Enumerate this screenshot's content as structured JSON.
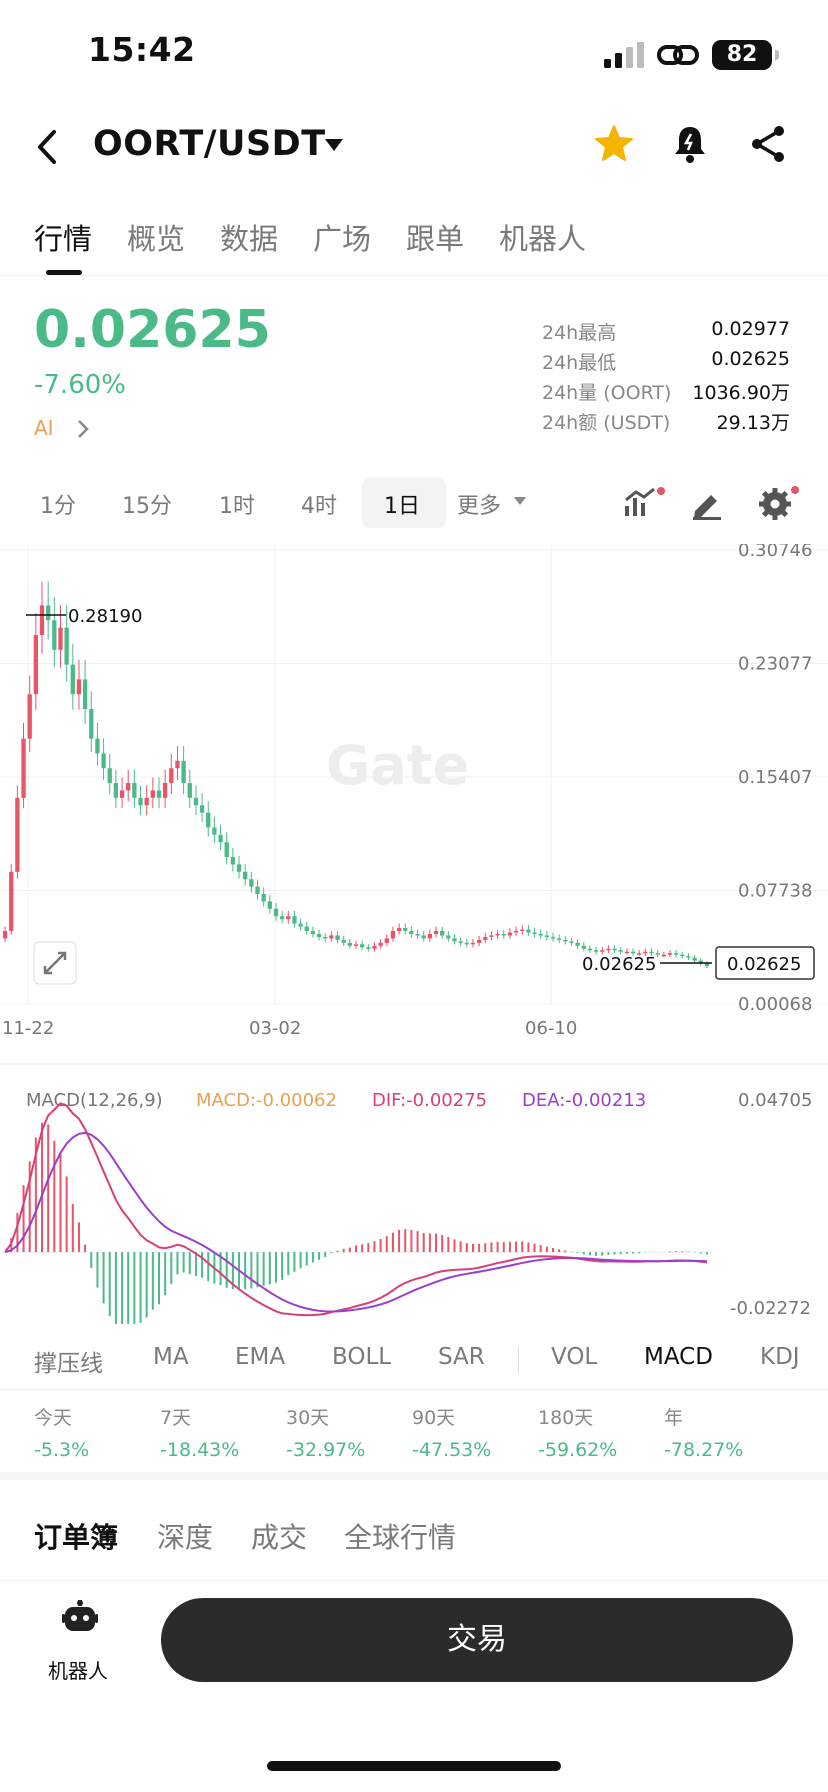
{
  "status_bar": {
    "time": "15:42",
    "battery": "82"
  },
  "header": {
    "pair": "OORT/USDT"
  },
  "tabs": [
    {
      "label": "行情",
      "active": true
    },
    {
      "label": "概览"
    },
    {
      "label": "数据"
    },
    {
      "label": "广场"
    },
    {
      "label": "跟单"
    },
    {
      "label": "机器人"
    }
  ],
  "ticker": {
    "price": "0.02625",
    "change": "-7.60%",
    "ai_label": "AI",
    "stats": [
      {
        "label": "24h最高",
        "value": "0.02977"
      },
      {
        "label": "24h最低",
        "value": "0.02625"
      },
      {
        "label": "24h量 (OORT)",
        "value": "1036.90万"
      },
      {
        "label": "24h额 (USDT)",
        "value": "29.13万"
      }
    ]
  },
  "timeframes": [
    {
      "label": "1分"
    },
    {
      "label": "15分"
    },
    {
      "label": "1时"
    },
    {
      "label": "4时"
    },
    {
      "label": "1日",
      "active": true
    },
    {
      "label": "更多"
    }
  ],
  "chart_data": {
    "type": "candlestick",
    "watermark": "Gate",
    "y_ticks": [
      "0.30746",
      "0.23077",
      "0.15407",
      "0.07738",
      "0.00068"
    ],
    "x_ticks": [
      "11-22",
      "03-02",
      "06-10"
    ],
    "high_marker": "0.28190",
    "low_marker": "0.02625",
    "current_price_label": "0.02625",
    "ylim": [
      0.00068,
      0.30746
    ],
    "close_series": [
      0.05,
      0.09,
      0.14,
      0.18,
      0.21,
      0.25,
      0.27,
      0.26,
      0.24,
      0.255,
      0.23,
      0.21,
      0.22,
      0.2,
      0.18,
      0.17,
      0.16,
      0.15,
      0.14,
      0.145,
      0.15,
      0.14,
      0.135,
      0.14,
      0.145,
      0.14,
      0.15,
      0.16,
      0.165,
      0.15,
      0.14,
      0.135,
      0.13,
      0.12,
      0.115,
      0.11,
      0.1,
      0.095,
      0.09,
      0.085,
      0.08,
      0.075,
      0.07,
      0.065,
      0.06,
      0.058,
      0.06,
      0.055,
      0.053,
      0.05,
      0.048,
      0.046,
      0.045,
      0.047,
      0.044,
      0.042,
      0.04,
      0.041,
      0.039,
      0.038,
      0.04,
      0.042,
      0.045,
      0.05,
      0.052,
      0.05,
      0.048,
      0.047,
      0.045,
      0.048,
      0.05,
      0.047,
      0.045,
      0.043,
      0.042,
      0.041,
      0.042,
      0.044,
      0.046,
      0.047,
      0.048,
      0.047,
      0.049,
      0.05,
      0.051,
      0.049,
      0.048,
      0.047,
      0.046,
      0.045,
      0.044,
      0.043,
      0.042,
      0.04,
      0.038,
      0.037,
      0.036,
      0.037,
      0.038,
      0.037,
      0.036,
      0.036,
      0.035,
      0.035,
      0.036,
      0.035,
      0.034,
      0.034,
      0.035,
      0.034,
      0.033,
      0.032,
      0.03,
      0.028,
      0.0262
    ],
    "macd": {
      "title": "MACD(12,26,9)",
      "macd_label": "MACD:-0.00062",
      "dif_label": "DIF:-0.00275",
      "dea_label": "DEA:-0.00213",
      "y_ticks": [
        "0.04705",
        "-0.02272"
      ],
      "ylim": [
        -0.02272,
        0.04705
      ]
    }
  },
  "indicators": [
    {
      "label": "撑压线"
    },
    {
      "label": "MA"
    },
    {
      "label": "EMA"
    },
    {
      "label": "BOLL"
    },
    {
      "label": "SAR"
    },
    {
      "label": "VOL"
    },
    {
      "label": "MACD",
      "active": true
    },
    {
      "label": "KDJ"
    }
  ],
  "performance": [
    {
      "label": "今天",
      "value": "-5.3%"
    },
    {
      "label": "7天",
      "value": "-18.43%"
    },
    {
      "label": "30天",
      "value": "-32.97%"
    },
    {
      "label": "90天",
      "value": "-47.53%"
    },
    {
      "label": "180天",
      "value": "-59.62%"
    },
    {
      "label": "年",
      "value": "-78.27%"
    }
  ],
  "orderbook_tabs": [
    {
      "label": "订单簿",
      "active": true
    },
    {
      "label": "深度"
    },
    {
      "label": "成交"
    },
    {
      "label": "全球行情"
    }
  ],
  "bottom": {
    "bot_label": "机器人",
    "trade_label": "交易"
  },
  "colors": {
    "up": "#e85468",
    "down": "#4bba89",
    "dif": "#d6407a",
    "dea": "#9b3fc9",
    "macd_label": "#e8a154"
  }
}
